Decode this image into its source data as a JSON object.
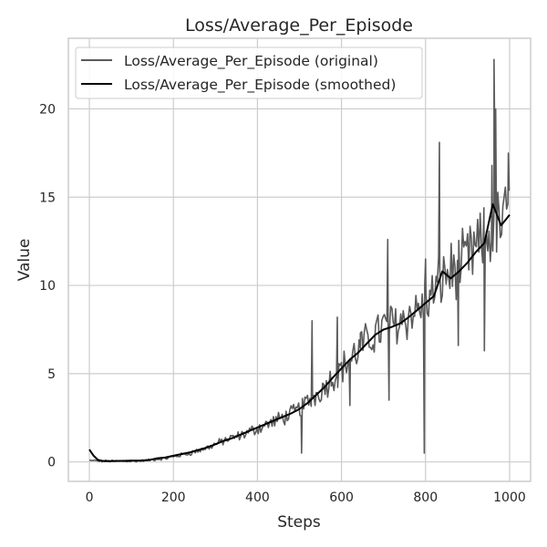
{
  "chart_data": {
    "type": "line",
    "title": "Loss/Average_Per_Episode",
    "xlabel": "Steps",
    "ylabel": "Value",
    "xlim": [
      -50,
      1050
    ],
    "ylim": [
      -1.1,
      24.0
    ],
    "xticks": [
      0,
      200,
      400,
      600,
      800,
      1000
    ],
    "yticks": [
      0,
      5,
      10,
      15,
      20
    ],
    "grid": true,
    "legend_position": "top-left",
    "series": [
      {
        "name": "Loss/Average_Per_Episode (original)",
        "color": "#5a5a5a",
        "style": "noisy",
        "x": [
          0,
          20,
          40,
          60,
          80,
          100,
          120,
          140,
          160,
          180,
          200,
          220,
          240,
          260,
          280,
          300,
          320,
          340,
          360,
          380,
          400,
          420,
          440,
          460,
          480,
          500,
          520,
          540,
          560,
          580,
          600,
          620,
          640,
          660,
          680,
          700,
          720,
          740,
          760,
          780,
          800,
          820,
          840,
          860,
          880,
          900,
          920,
          940,
          960,
          980,
          1000
        ],
        "y": [
          0.1,
          0.05,
          0.05,
          0.05,
          0.05,
          0.05,
          0.06,
          0.1,
          0.15,
          0.2,
          0.3,
          0.4,
          0.5,
          0.65,
          0.8,
          1.0,
          1.2,
          1.35,
          1.5,
          1.7,
          1.9,
          2.1,
          2.3,
          2.5,
          2.7,
          3.0,
          3.4,
          3.8,
          4.3,
          4.8,
          5.3,
          5.8,
          6.3,
          6.8,
          7.3,
          7.6,
          7.8,
          8.0,
          8.3,
          8.6,
          9.0,
          9.5,
          10.5,
          10.8,
          11.0,
          11.5,
          12.0,
          12.5,
          13.0,
          13.5,
          14.0
        ],
        "spikes": [
          {
            "x": 710,
            "y": 12.6
          },
          {
            "x": 713,
            "y": 3.5
          },
          {
            "x": 530,
            "y": 8.0
          },
          {
            "x": 505,
            "y": 0.5
          },
          {
            "x": 797,
            "y": 0.5
          },
          {
            "x": 800,
            "y": 11.5
          },
          {
            "x": 833,
            "y": 18.1
          },
          {
            "x": 878,
            "y": 6.6
          },
          {
            "x": 940,
            "y": 6.3
          },
          {
            "x": 963,
            "y": 22.8
          },
          {
            "x": 967,
            "y": 20.0
          },
          {
            "x": 958,
            "y": 16.8
          },
          {
            "x": 997,
            "y": 17.5
          },
          {
            "x": 590,
            "y": 8.2
          },
          {
            "x": 645,
            "y": 7.3
          },
          {
            "x": 620,
            "y": 3.2
          }
        ]
      },
      {
        "name": "Loss/Average_Per_Episode (smoothed)",
        "color": "#000000",
        "style": "smooth",
        "x": [
          0,
          10,
          20,
          30,
          40,
          60,
          80,
          100,
          120,
          140,
          160,
          180,
          200,
          220,
          240,
          260,
          280,
          300,
          320,
          340,
          360,
          380,
          400,
          420,
          440,
          460,
          480,
          500,
          520,
          540,
          560,
          580,
          600,
          620,
          640,
          660,
          680,
          700,
          720,
          740,
          760,
          780,
          800,
          820,
          840,
          860,
          880,
          900,
          920,
          940,
          960,
          980,
          1000
        ],
        "y": [
          0.7,
          0.35,
          0.12,
          0.06,
          0.05,
          0.05,
          0.06,
          0.07,
          0.08,
          0.1,
          0.2,
          0.25,
          0.35,
          0.45,
          0.55,
          0.68,
          0.82,
          1.0,
          1.2,
          1.35,
          1.55,
          1.75,
          1.95,
          2.15,
          2.35,
          2.55,
          2.75,
          3.0,
          3.35,
          3.8,
          4.25,
          4.8,
          5.3,
          5.8,
          6.2,
          6.7,
          7.2,
          7.5,
          7.65,
          7.85,
          8.2,
          8.6,
          9.0,
          9.4,
          10.8,
          10.4,
          10.8,
          11.3,
          11.9,
          12.4,
          14.6,
          13.4,
          14.0
        ]
      }
    ]
  }
}
